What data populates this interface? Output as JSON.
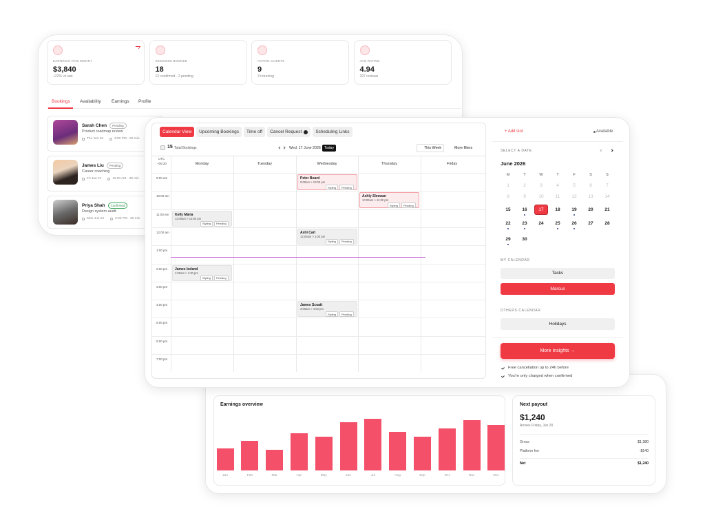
{
  "stats": [
    {
      "label": "EARNINGS THIS MONTH",
      "value": "$3,840",
      "sub": "+22% vs last"
    },
    {
      "label": "SESSIONS BOOKED",
      "value": "18",
      "sub": "12 confirmed · 2 pending"
    },
    {
      "label": "ACTIVE CLIENTS",
      "value": "9",
      "sub": "3 returning"
    },
    {
      "label": "AVG RATING",
      "value": "4.94",
      "sub": "297 reviews"
    }
  ],
  "tabs": [
    "Bookings",
    "Availability",
    "Earnings",
    "Profile"
  ],
  "bookings": [
    {
      "name": "Sarah Chen",
      "status": "Pending",
      "desc": "Product roadmap review",
      "date": "Thu Jun 20",
      "time": "3:00 PM · 60 min"
    },
    {
      "name": "James Liu",
      "status": "Pending",
      "desc": "Career coaching",
      "date": "Fri Jun 21",
      "time": "11:00 AM · 30 min"
    },
    {
      "name": "Priya Shah",
      "status": "Confirmed",
      "desc": "Design system audit",
      "date": "Mon Jun 24",
      "time": "2:00 PM · 60 min"
    }
  ],
  "calendar": {
    "tabs": [
      "Calendar View",
      "Upcoming Bookings",
      "Time off",
      "Cancel Request",
      "Scheduling Links"
    ],
    "total": 15,
    "total_label": "Total Bookings",
    "date": "Wed, 17 June 2026",
    "today": "Today",
    "week": "This Week",
    "filters": "More filters",
    "tz": "UTC",
    "offset": "+05:30",
    "days": [
      "Monday",
      "Tuesday",
      "Wednesday",
      "Thursday",
      "Friday"
    ],
    "times": [
      "9:00 am",
      "10:00 am",
      "11:00 am",
      "12:00 am",
      "1:00 pm",
      "2:00 pm",
      "3:00 pm",
      "4:00 pm",
      "5:00 pm",
      "6:00 pm",
      "7:00 pm"
    ],
    "events": [
      {
        "name": "Peter Board",
        "time": "9:00am > 10:00 pm",
        "tags": [
          "Styling",
          "Pending"
        ]
      },
      {
        "name": "Ashly Sleewan",
        "time": "10:00am > 11:00 pm",
        "tags": [
          "Styling",
          "Pending"
        ]
      },
      {
        "name": "Kelly Maria",
        "time": "11:00am > 12:00 pm",
        "tags": [
          "Styling",
          "Pending"
        ]
      },
      {
        "name": "Ashi Carl",
        "time": "12:00am > 1:00 pm",
        "tags": [
          "Styling",
          "Pending"
        ]
      },
      {
        "name": "James boland",
        "time": "1:00am > 1:30 pm",
        "tags": [
          "Styling",
          "Pending"
        ]
      },
      {
        "name": "James Scoatt",
        "time": "3:00am > 4:00 pm",
        "tags": [
          "Styling",
          "Pending"
        ]
      }
    ]
  },
  "sidebar": {
    "add": "+ Add slot",
    "available": "Available",
    "select": "SELECT A DATE",
    "month": "June 2026",
    "weekdays": [
      "M",
      "T",
      "W",
      "T",
      "F",
      "S",
      "S"
    ],
    "dates": [
      1,
      2,
      3,
      4,
      5,
      6,
      7,
      8,
      9,
      10,
      11,
      12,
      13,
      14,
      15,
      16,
      17,
      18,
      19,
      20,
      21,
      22,
      23,
      24,
      25,
      26,
      27,
      28,
      29,
      30
    ],
    "selected": 17,
    "my_calendar": "MY CALENDAR",
    "tasks": "Tasks",
    "marcus": "Marcus",
    "others": "OTHERS CALENDAR",
    "holidays": "Holidays",
    "insights": "More Insights →",
    "notes": [
      "Free cancellation up to 24h before",
      "You're only charged when confirmed"
    ]
  },
  "chart_data": {
    "type": "bar",
    "title": "Earnings overview",
    "categories": [
      "Jan",
      "Feb",
      "Mar",
      "Apr",
      "May",
      "Jun",
      "Jul",
      "Aug",
      "Sep",
      "Oct",
      "Nov",
      "Dec"
    ],
    "values": [
      33,
      45,
      31,
      57,
      51,
      73,
      78,
      59,
      51,
      64,
      76,
      69
    ],
    "color": "#f4506a",
    "ylim": [
      0,
      90
    ]
  },
  "payout": {
    "title": "Next payout",
    "amount": "$1,240",
    "arrives": "Arrives Friday, Jun 20",
    "rows": [
      [
        "Gross",
        "$1,380"
      ],
      [
        "Platform fee",
        "-$140"
      ],
      [
        "Net",
        "$1,240"
      ]
    ]
  }
}
